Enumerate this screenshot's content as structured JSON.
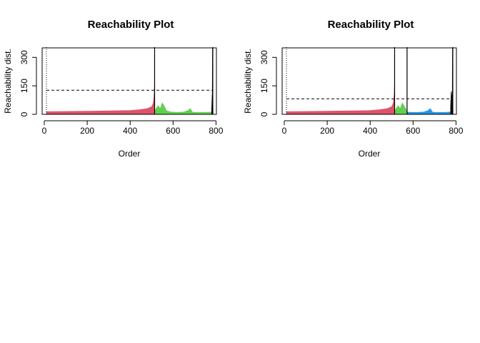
{
  "chart_data": [
    {
      "type": "area",
      "title": "Reachability Plot",
      "xlabel": "Order",
      "ylabel": "Reachability dist.",
      "xlim": [
        -10,
        802
      ],
      "ylim": [
        0,
        350
      ],
      "xticks": [
        0,
        200,
        400,
        600,
        800
      ],
      "yticks": [
        0,
        150,
        300
      ],
      "threshold": 127,
      "cluster_boundaries": [
        10,
        514,
        785
      ],
      "series": [
        {
          "color": "#DF536B",
          "x": [
            10,
            100,
            200,
            300,
            400,
            440,
            480,
            500,
            508,
            512,
            514
          ],
          "values": [
            14,
            15,
            16,
            18,
            20,
            24,
            30,
            40,
            60,
            110,
            168
          ]
        },
        {
          "color": "#61D04F",
          "x": [
            514,
            520,
            530,
            540,
            550,
            560,
            570,
            590,
            620,
            650,
            670,
            680,
            690,
            700,
            720,
            750,
            783
          ],
          "values": [
            20,
            28,
            45,
            30,
            60,
            40,
            18,
            12,
            10,
            12,
            20,
            30,
            12,
            10,
            10,
            10,
            12
          ]
        },
        {
          "color": "#000000",
          "x": [
            780,
            783,
            784,
            786
          ],
          "values": [
            30,
            120,
            350,
            0
          ]
        }
      ]
    },
    {
      "type": "area",
      "title": "Reachability Plot",
      "xlabel": "Order",
      "ylabel": "Reachability dist.",
      "xlim": [
        -10,
        802
      ],
      "ylim": [
        0,
        350
      ],
      "xticks": [
        0,
        200,
        400,
        600,
        800
      ],
      "yticks": [
        0,
        150,
        300
      ],
      "threshold": 82,
      "cluster_boundaries": [
        10,
        514,
        572,
        785
      ],
      "series": [
        {
          "color": "#DF536B",
          "x": [
            10,
            100,
            200,
            300,
            400,
            440,
            480,
            500,
            508,
            512,
            514
          ],
          "values": [
            14,
            15,
            16,
            18,
            20,
            24,
            30,
            40,
            60,
            110,
            168
          ]
        },
        {
          "color": "#61D04F",
          "x": [
            514,
            520,
            530,
            540,
            550,
            560,
            572
          ],
          "values": [
            20,
            28,
            45,
            30,
            60,
            40,
            18
          ]
        },
        {
          "color": "#2297E6",
          "x": [
            572,
            590,
            620,
            650,
            670,
            680,
            690,
            700,
            720,
            750,
            775
          ],
          "values": [
            12,
            10,
            10,
            12,
            20,
            30,
            12,
            10,
            10,
            10,
            12
          ]
        },
        {
          "color": "#000000",
          "x": [
            775,
            778,
            780,
            783,
            784,
            786
          ],
          "values": [
            40,
            120,
            60,
            130,
            350,
            0
          ]
        }
      ]
    }
  ]
}
